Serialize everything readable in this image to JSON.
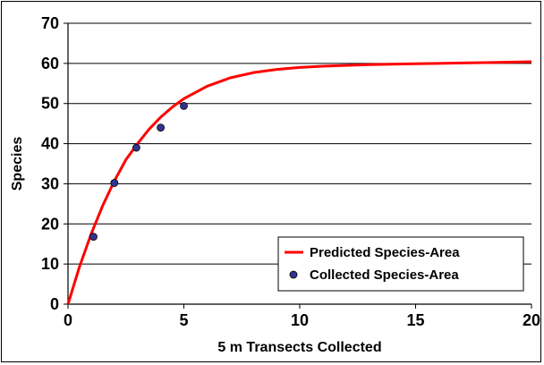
{
  "chart_data": {
    "type": "scatter",
    "xlabel": "5 m Transects Collected",
    "ylabel": "Species",
    "xlim": [
      0,
      20
    ],
    "ylim": [
      0,
      70
    ],
    "xticks": [
      "0",
      "5",
      "10",
      "15",
      "20"
    ],
    "yticks": [
      "0",
      "10",
      "20",
      "30",
      "40",
      "50",
      "60",
      "70"
    ],
    "grid": "horizontal",
    "legend_position": "bottom-right",
    "series": [
      {
        "name": "Predicted Species-Area",
        "kind": "line",
        "color": "#ff0000",
        "x": [
          0,
          0.5,
          1,
          1.5,
          2,
          2.5,
          3,
          3.5,
          4,
          4.5,
          5,
          6,
          7,
          8,
          9,
          10,
          11,
          12,
          13,
          14,
          15,
          16,
          17,
          18,
          19,
          20
        ],
        "y": [
          0,
          9.4,
          17.5,
          24.6,
          30.7,
          36.0,
          40.0,
          43.6,
          46.6,
          49.1,
          51.2,
          54.3,
          56.4,
          57.7,
          58.5,
          59.0,
          59.3,
          59.5,
          59.7,
          59.8,
          59.9,
          60.0,
          60.1,
          60.2,
          60.3,
          60.4
        ]
      },
      {
        "name": "Collected Species-Area",
        "kind": "scatter",
        "color": "#33338f",
        "x": [
          1.1,
          2.0,
          2.95,
          4.0,
          5.0
        ],
        "y": [
          16.8,
          30.2,
          39.0,
          44.0,
          49.4
        ]
      }
    ]
  }
}
